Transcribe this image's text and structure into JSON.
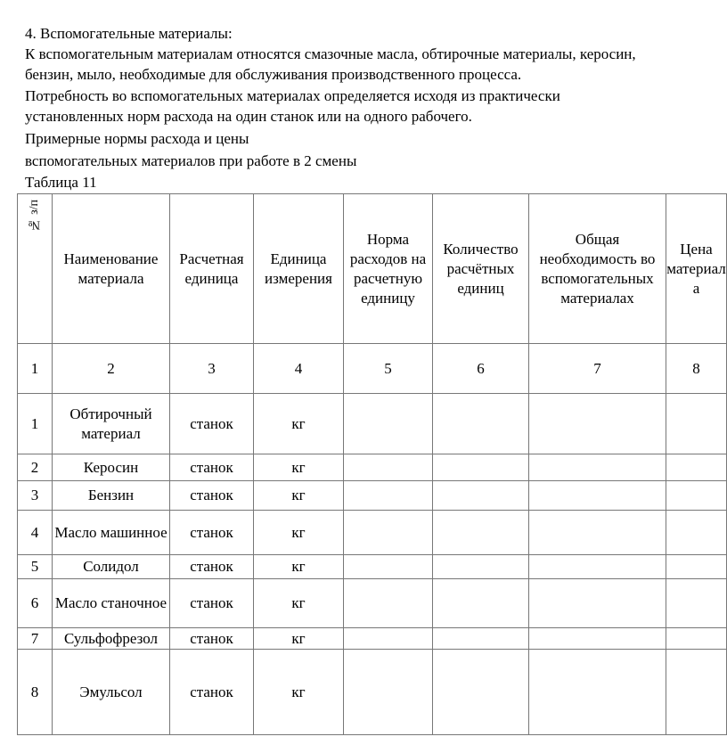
{
  "heading": "4. Вспомогательные материалы:",
  "paragraphs": [
    "  К вспомогательным материалам относятся смазочные масла, обтирочные материалы, керосин,",
    "бензин, мыло, необходимые для обслуживания производственного процесса.",
    "  Потребность во вспомогательных материалах определяется исходя из практически",
    "установленных норм расхода на один станок или на одного рабочего.",
    "  Примерные нормы расхода и цены",
    "вспомогательных материалов при работе в 2 смены",
    "Таблица 11"
  ],
  "table": {
    "headers": [
      "№ з/п",
      "Наименование материала",
      "Расчетная единица",
      "Единица измерения",
      "Норма расходов на расчетную единицу",
      "Количество расчётных единиц",
      "Общая необходимость во вспомогательных материалах",
      "Цена материала"
    ],
    "column_numbers": [
      "1",
      "2",
      "3",
      "4",
      "5",
      "6",
      "7",
      "8"
    ],
    "rows": [
      {
        "n": "1",
        "name": "Обтирочный материал",
        "unit": "станок",
        "measure": "кг"
      },
      {
        "n": "2",
        "name": "Керосин",
        "unit": "станок",
        "measure": "кг"
      },
      {
        "n": "3",
        "name": "Бензин",
        "unit": "станок",
        "measure": "кг"
      },
      {
        "n": "4",
        "name": "Масло машинное",
        "unit": "станок",
        "measure": "кг"
      },
      {
        "n": "5",
        "name": "Солидол",
        "unit": "станок",
        "measure": "кг"
      },
      {
        "n": "6",
        "name": "Масло станочное",
        "unit": "станок",
        "measure": "кг"
      },
      {
        "n": "7",
        "name": "Сульфофрезол",
        "unit": "станок",
        "measure": "кг"
      },
      {
        "n": "8",
        "name": "Эмульсол",
        "unit": "станок",
        "measure": "кг"
      }
    ]
  }
}
